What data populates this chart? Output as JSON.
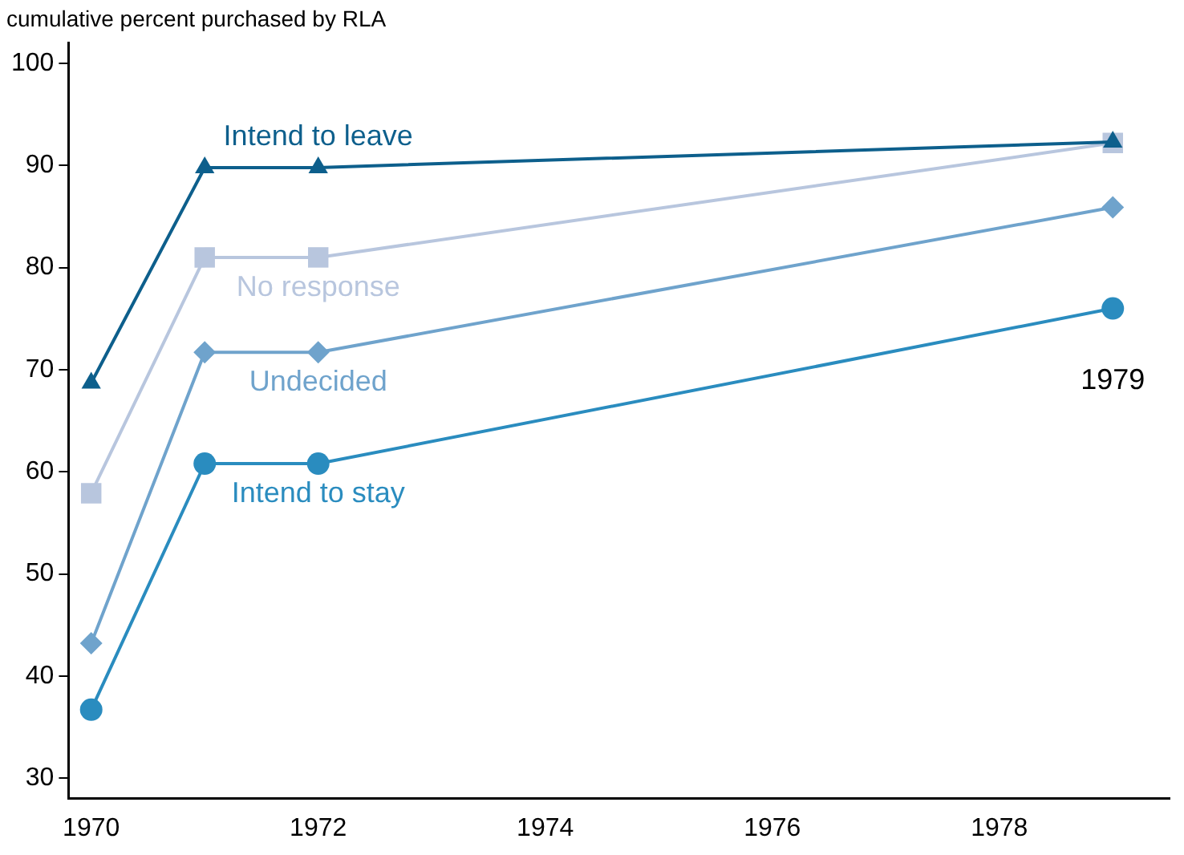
{
  "chart_data": {
    "type": "line",
    "title": "cumulative percent purchased by RLA",
    "x": [
      1970,
      1971,
      1972,
      1979
    ],
    "series": [
      {
        "name": "Intend to leave",
        "color": "#0d5f8c",
        "marker": "triangle",
        "values": [
          68.7,
          89.8,
          89.8,
          92.3
        ]
      },
      {
        "name": "No response",
        "color": "#b8c6de",
        "marker": "square",
        "values": [
          57.9,
          81.0,
          81.0,
          92.2
        ]
      },
      {
        "name": "Undecided",
        "color": "#6fa3cc",
        "marker": "diamond",
        "values": [
          43.2,
          71.7,
          71.7,
          85.9
        ]
      },
      {
        "name": "Intend to stay",
        "color": "#2a8cbf",
        "marker": "circle",
        "values": [
          36.7,
          60.8,
          60.8,
          76.0
        ]
      }
    ],
    "annotations": [
      "1979"
    ],
    "xlim": [
      1969.8,
      1979.5
    ],
    "xticks": [
      1970,
      1972,
      1974,
      1976,
      1978
    ],
    "ylim": [
      28,
      102
    ],
    "yticks": [
      30,
      40,
      50,
      60,
      70,
      80,
      90,
      100
    ],
    "grid": false,
    "legend": false
  }
}
